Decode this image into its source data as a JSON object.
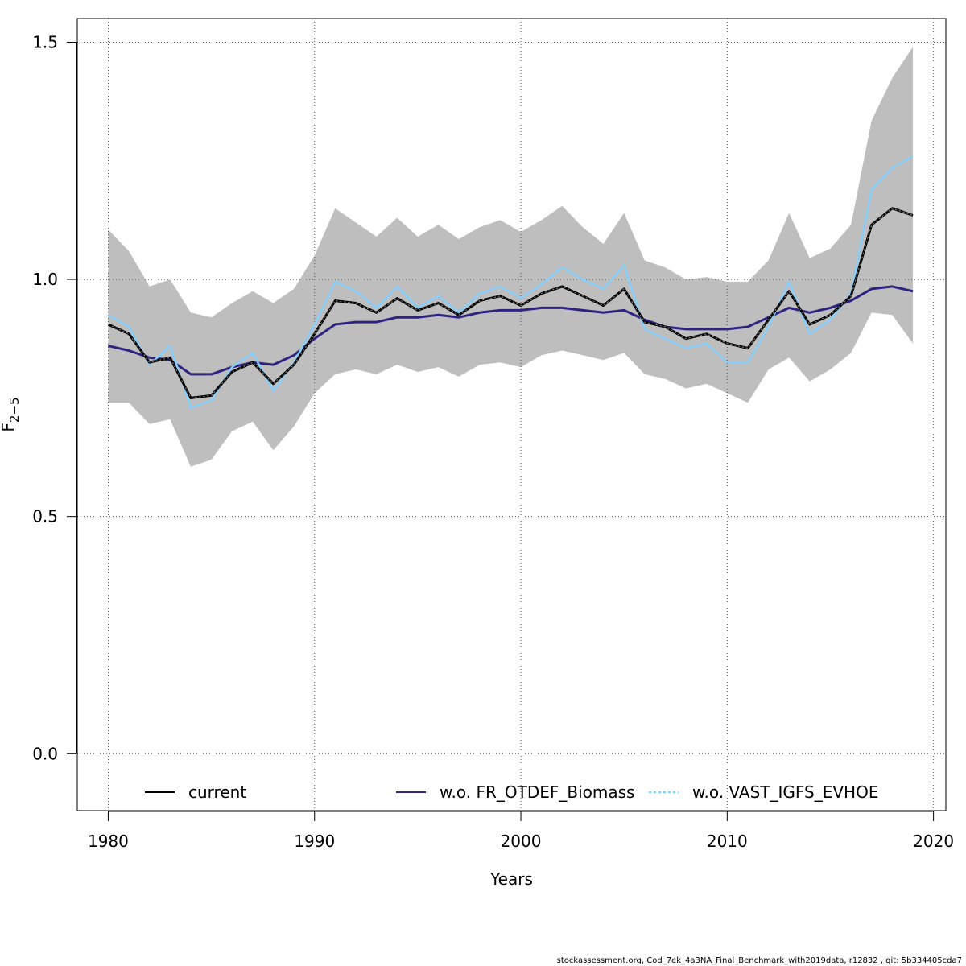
{
  "chart_data": {
    "type": "line",
    "title": "",
    "xlabel": "Years",
    "ylabel_main": "F",
    "ylabel_sub": "2−5",
    "xlim": [
      1978.5,
      2020.6
    ],
    "ylim": [
      -0.12,
      1.55
    ],
    "x_ticks": [
      1980,
      1990,
      2000,
      2010,
      2020
    ],
    "x_tick_labels": [
      "1980",
      "1990",
      "2000",
      "2010",
      "2020"
    ],
    "y_ticks": [
      0.0,
      0.5,
      1.0,
      1.5
    ],
    "y_tick_labels": [
      "0.0",
      "0.5",
      "1.0",
      "1.5"
    ],
    "grid": true,
    "legend_position": "bottom",
    "x": [
      1980,
      1981,
      1982,
      1983,
      1984,
      1985,
      1986,
      1987,
      1988,
      1989,
      1990,
      1991,
      1992,
      1993,
      1994,
      1995,
      1996,
      1997,
      1998,
      1999,
      2000,
      2001,
      2002,
      2003,
      2004,
      2005,
      2006,
      2007,
      2008,
      2009,
      2010,
      2011,
      2012,
      2013,
      2014,
      2015,
      2016,
      2017,
      2018,
      2019
    ],
    "band": {
      "color": "#bebebe",
      "upper": [
        1.105,
        1.06,
        0.985,
        1.0,
        0.93,
        0.92,
        0.95,
        0.975,
        0.95,
        0.98,
        1.05,
        1.15,
        1.12,
        1.09,
        1.13,
        1.09,
        1.115,
        1.085,
        1.11,
        1.125,
        1.1,
        1.125,
        1.155,
        1.11,
        1.075,
        1.14,
        1.04,
        1.025,
        1.0,
        1.005,
        0.995,
        0.995,
        1.04,
        1.14,
        1.045,
        1.065,
        1.115,
        1.335,
        1.425,
        1.49
      ],
      "lower": [
        0.74,
        0.74,
        0.695,
        0.705,
        0.605,
        0.62,
        0.68,
        0.7,
        0.64,
        0.69,
        0.76,
        0.8,
        0.81,
        0.8,
        0.82,
        0.805,
        0.815,
        0.795,
        0.82,
        0.825,
        0.815,
        0.84,
        0.85,
        0.84,
        0.83,
        0.845,
        0.8,
        0.79,
        0.77,
        0.78,
        0.76,
        0.74,
        0.81,
        0.835,
        0.785,
        0.81,
        0.845,
        0.93,
        0.925,
        0.865
      ]
    },
    "series": [
      {
        "name": "current",
        "color": "#000000",
        "dash": "solid",
        "values": [
          0.905,
          0.885,
          0.825,
          0.835,
          0.75,
          0.755,
          0.805,
          0.825,
          0.78,
          0.82,
          0.885,
          0.955,
          0.95,
          0.93,
          0.96,
          0.935,
          0.95,
          0.925,
          0.955,
          0.965,
          0.945,
          0.97,
          0.985,
          0.965,
          0.945,
          0.98,
          0.91,
          0.9,
          0.875,
          0.885,
          0.865,
          0.855,
          0.915,
          0.975,
          0.905,
          0.925,
          0.965,
          1.115,
          1.15,
          1.135
        ]
      },
      {
        "name": "w.o. FR_OTDEF_Biomass",
        "color": "#2e2381",
        "dash": "solid",
        "values": [
          0.86,
          0.85,
          0.835,
          0.83,
          0.8,
          0.8,
          0.815,
          0.825,
          0.82,
          0.84,
          0.875,
          0.905,
          0.91,
          0.91,
          0.92,
          0.92,
          0.925,
          0.92,
          0.93,
          0.935,
          0.935,
          0.94,
          0.94,
          0.935,
          0.93,
          0.935,
          0.915,
          0.9,
          0.895,
          0.895,
          0.895,
          0.9,
          0.92,
          0.94,
          0.93,
          0.94,
          0.955,
          0.98,
          0.985,
          0.975
        ]
      },
      {
        "name": "w.o. VAST_IGFS_EVHOE",
        "color": "#87cefa",
        "dash": "dotted",
        "values": [
          0.925,
          0.9,
          0.82,
          0.86,
          0.73,
          0.745,
          0.815,
          0.845,
          0.765,
          0.825,
          0.905,
          0.995,
          0.975,
          0.94,
          0.985,
          0.94,
          0.965,
          0.93,
          0.97,
          0.985,
          0.96,
          0.99,
          1.025,
          1.0,
          0.98,
          1.03,
          0.895,
          0.875,
          0.855,
          0.865,
          0.825,
          0.825,
          0.9,
          0.995,
          0.885,
          0.915,
          0.97,
          1.19,
          1.235,
          1.26
        ]
      }
    ]
  },
  "footer": {
    "text": "stockassessment.org, Cod_7ek_4a3NA_Final_Benchmark_with2019data, r12832 , git: 5b334405cda7"
  }
}
